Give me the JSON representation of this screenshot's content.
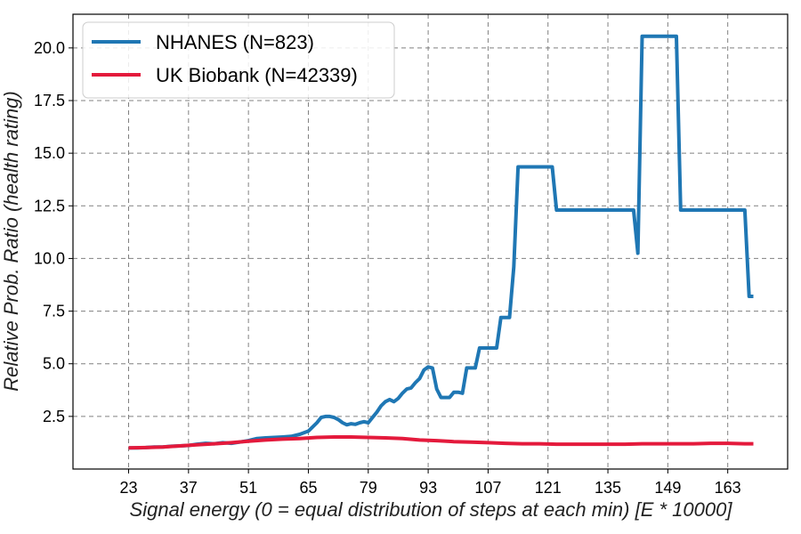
{
  "chart_data": {
    "type": "line",
    "title": "",
    "xlabel": "Signal energy (0 = equal distribution of steps at each min) [E * 10000]",
    "ylabel": "Relative Prob. Ratio (health rating)",
    "xlim": [
      10,
      177
    ],
    "ylim": [
      0,
      21.6
    ],
    "xticks": [
      23,
      37,
      51,
      65,
      79,
      93,
      107,
      121,
      135,
      149,
      163
    ],
    "yticks": [
      2.5,
      5.0,
      7.5,
      10.0,
      12.5,
      15.0,
      17.5,
      20.0
    ],
    "ytick_labels": [
      "2.5",
      "5.0",
      "7.5",
      "10.0",
      "12.5",
      "15.0",
      "17.5",
      "20.0"
    ],
    "grid": true,
    "legend_position": "top-left",
    "series": [
      {
        "name": "NHANES (N=823)",
        "color": "#1f77b4",
        "points": [
          [
            23,
            1.0
          ],
          [
            25,
            1.0
          ],
          [
            27,
            1.02
          ],
          [
            29,
            1.05
          ],
          [
            31,
            1.05
          ],
          [
            33,
            1.08
          ],
          [
            35,
            1.1
          ],
          [
            37,
            1.12
          ],
          [
            39,
            1.18
          ],
          [
            41,
            1.22
          ],
          [
            43,
            1.2
          ],
          [
            45,
            1.25
          ],
          [
            47,
            1.22
          ],
          [
            49,
            1.28
          ],
          [
            51,
            1.35
          ],
          [
            53,
            1.45
          ],
          [
            55,
            1.48
          ],
          [
            57,
            1.5
          ],
          [
            59,
            1.52
          ],
          [
            61,
            1.55
          ],
          [
            63,
            1.65
          ],
          [
            65,
            1.8
          ],
          [
            66,
            2.0
          ],
          [
            67,
            2.2
          ],
          [
            68,
            2.45
          ],
          [
            69,
            2.5
          ],
          [
            70,
            2.5
          ],
          [
            71,
            2.45
          ],
          [
            72,
            2.35
          ],
          [
            73,
            2.2
          ],
          [
            74,
            2.1
          ],
          [
            75,
            2.15
          ],
          [
            76,
            2.12
          ],
          [
            77,
            2.2
          ],
          [
            78,
            2.25
          ],
          [
            79,
            2.2
          ],
          [
            80,
            2.45
          ],
          [
            81,
            2.7
          ],
          [
            82,
            3.0
          ],
          [
            83,
            3.2
          ],
          [
            84,
            3.3
          ],
          [
            85,
            3.2
          ],
          [
            86,
            3.35
          ],
          [
            87,
            3.6
          ],
          [
            88,
            3.8
          ],
          [
            89,
            3.85
          ],
          [
            90,
            4.1
          ],
          [
            91,
            4.3
          ],
          [
            92,
            4.7
          ],
          [
            93,
            4.85
          ],
          [
            94,
            4.8
          ],
          [
            95,
            3.8
          ],
          [
            96,
            3.4
          ],
          [
            97,
            3.4
          ],
          [
            98,
            3.4
          ],
          [
            99,
            3.65
          ],
          [
            100,
            3.65
          ],
          [
            101,
            3.6
          ],
          [
            102,
            4.8
          ],
          [
            103,
            4.8
          ],
          [
            104,
            4.8
          ],
          [
            105,
            5.75
          ],
          [
            106,
            5.75
          ],
          [
            107,
            5.75
          ],
          [
            108,
            5.75
          ],
          [
            109,
            5.75
          ],
          [
            110,
            7.2
          ],
          [
            111,
            7.2
          ],
          [
            112,
            7.2
          ],
          [
            113,
            9.6
          ],
          [
            114,
            14.35
          ],
          [
            115,
            14.35
          ],
          [
            116,
            14.35
          ],
          [
            117,
            14.35
          ],
          [
            118,
            14.35
          ],
          [
            119,
            14.35
          ],
          [
            120,
            14.35
          ],
          [
            121,
            14.35
          ],
          [
            122,
            14.35
          ],
          [
            123,
            12.3
          ],
          [
            124,
            12.3
          ],
          [
            126,
            12.3
          ],
          [
            128,
            12.3
          ],
          [
            130,
            12.3
          ],
          [
            132,
            12.3
          ],
          [
            134,
            12.3
          ],
          [
            136,
            12.3
          ],
          [
            138,
            12.3
          ],
          [
            140,
            12.3
          ],
          [
            141,
            12.3
          ],
          [
            142,
            10.25
          ],
          [
            143,
            20.55
          ],
          [
            144,
            20.55
          ],
          [
            146,
            20.55
          ],
          [
            148,
            20.55
          ],
          [
            150,
            20.55
          ],
          [
            151,
            20.55
          ],
          [
            152,
            12.3
          ],
          [
            154,
            12.3
          ],
          [
            156,
            12.3
          ],
          [
            158,
            12.3
          ],
          [
            160,
            12.3
          ],
          [
            162,
            12.3
          ],
          [
            164,
            12.3
          ],
          [
            166,
            12.3
          ],
          [
            167,
            12.3
          ],
          [
            168,
            8.2
          ],
          [
            169,
            8.2
          ]
        ]
      },
      {
        "name": "UK Biobank (N=42339)",
        "color": "#e41a3c",
        "points": [
          [
            23,
            1.0
          ],
          [
            27,
            1.02
          ],
          [
            31,
            1.05
          ],
          [
            35,
            1.1
          ],
          [
            39,
            1.15
          ],
          [
            43,
            1.2
          ],
          [
            47,
            1.25
          ],
          [
            51,
            1.32
          ],
          [
            55,
            1.38
          ],
          [
            59,
            1.42
          ],
          [
            63,
            1.45
          ],
          [
            67,
            1.5
          ],
          [
            71,
            1.52
          ],
          [
            75,
            1.52
          ],
          [
            79,
            1.5
          ],
          [
            83,
            1.48
          ],
          [
            87,
            1.45
          ],
          [
            91,
            1.38
          ],
          [
            95,
            1.35
          ],
          [
            99,
            1.3
          ],
          [
            103,
            1.28
          ],
          [
            107,
            1.25
          ],
          [
            111,
            1.22
          ],
          [
            115,
            1.2
          ],
          [
            119,
            1.2
          ],
          [
            123,
            1.18
          ],
          [
            127,
            1.18
          ],
          [
            131,
            1.18
          ],
          [
            135,
            1.18
          ],
          [
            139,
            1.18
          ],
          [
            143,
            1.2
          ],
          [
            147,
            1.2
          ],
          [
            151,
            1.2
          ],
          [
            155,
            1.2
          ],
          [
            159,
            1.22
          ],
          [
            163,
            1.22
          ],
          [
            167,
            1.2
          ],
          [
            169,
            1.2
          ]
        ]
      }
    ]
  }
}
